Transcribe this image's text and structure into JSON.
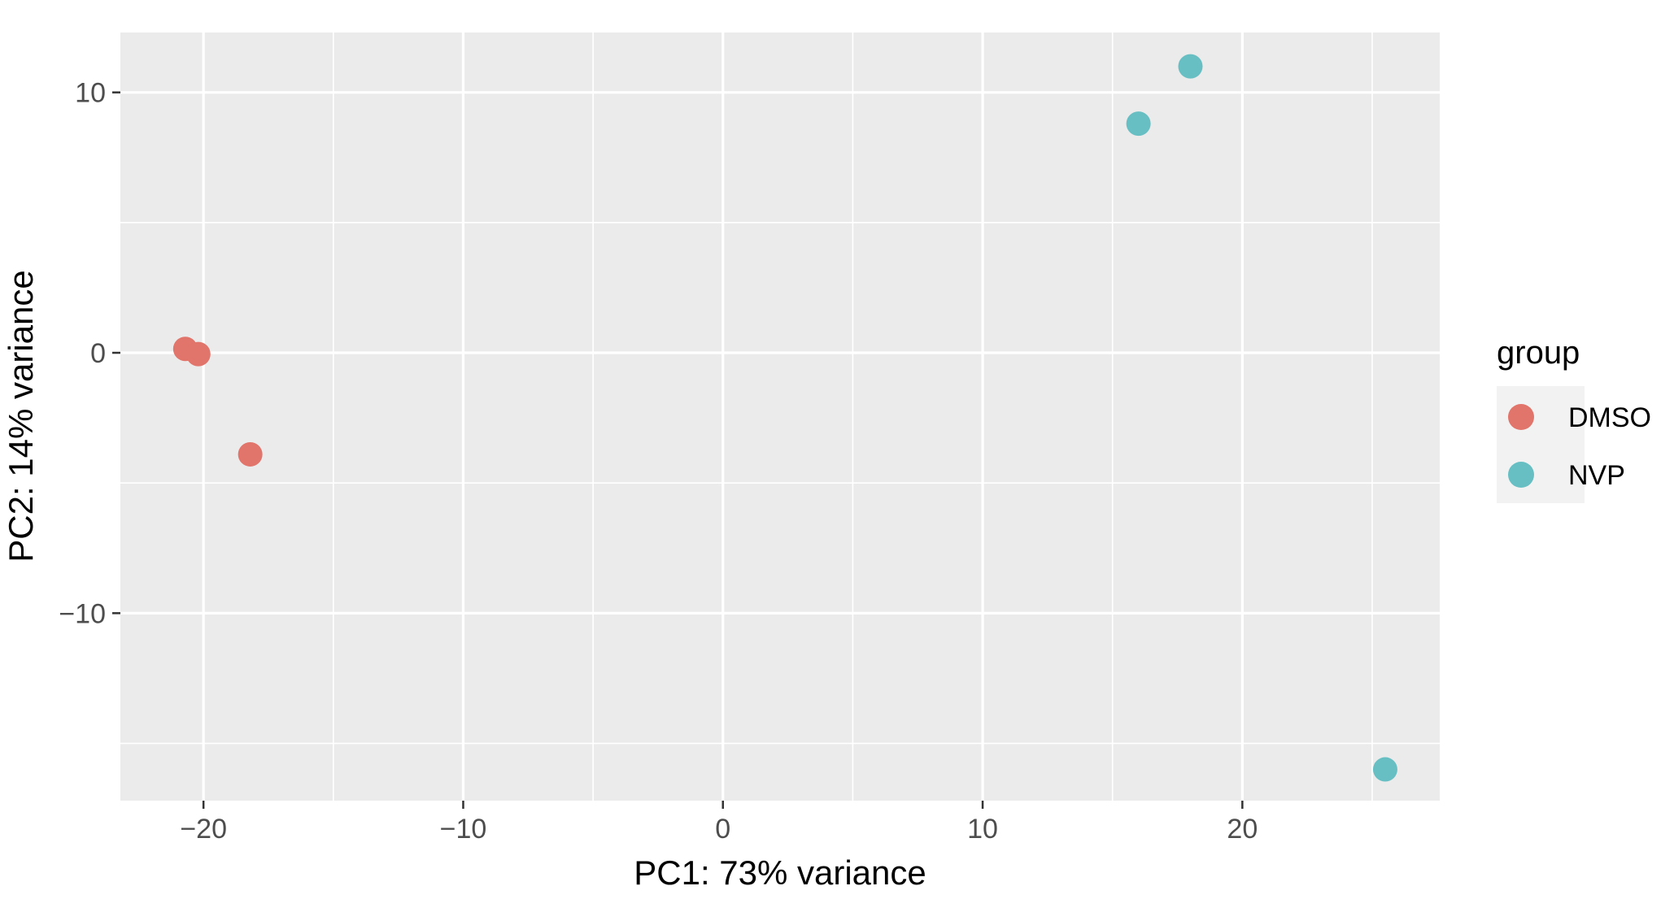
{
  "chart_data": {
    "type": "scatter",
    "title": "",
    "xlabel": "PC1: 73% variance",
    "ylabel": "PC2: 14% variance",
    "xlim": [
      -23.2,
      27.6
    ],
    "ylim": [
      -17.2,
      12.3
    ],
    "x_major_ticks": [
      -20,
      -10,
      0,
      10,
      20
    ],
    "x_minor_ticks": [
      -15,
      -5,
      5,
      15,
      25
    ],
    "y_major_ticks": [
      -10,
      0,
      10
    ],
    "y_minor_ticks": [
      -15,
      -5,
      5
    ],
    "x_tick_labels": [
      "−20",
      "−10",
      "0",
      "10",
      "20"
    ],
    "y_tick_labels": [
      "−10",
      "0",
      "10"
    ],
    "grid": true,
    "legend": {
      "title": "group",
      "position": "right"
    },
    "series": [
      {
        "name": "DMSO",
        "color": "#E1746B",
        "points": [
          {
            "x": -20.7,
            "y": 0.15
          },
          {
            "x": -20.2,
            "y": -0.05
          },
          {
            "x": -18.2,
            "y": -3.9
          }
        ]
      },
      {
        "name": "NVP",
        "color": "#67BFC4",
        "points": [
          {
            "x": 18.0,
            "y": 11.0
          },
          {
            "x": 16.0,
            "y": 8.8
          },
          {
            "x": 25.5,
            "y": -16.0
          }
        ]
      }
    ]
  }
}
